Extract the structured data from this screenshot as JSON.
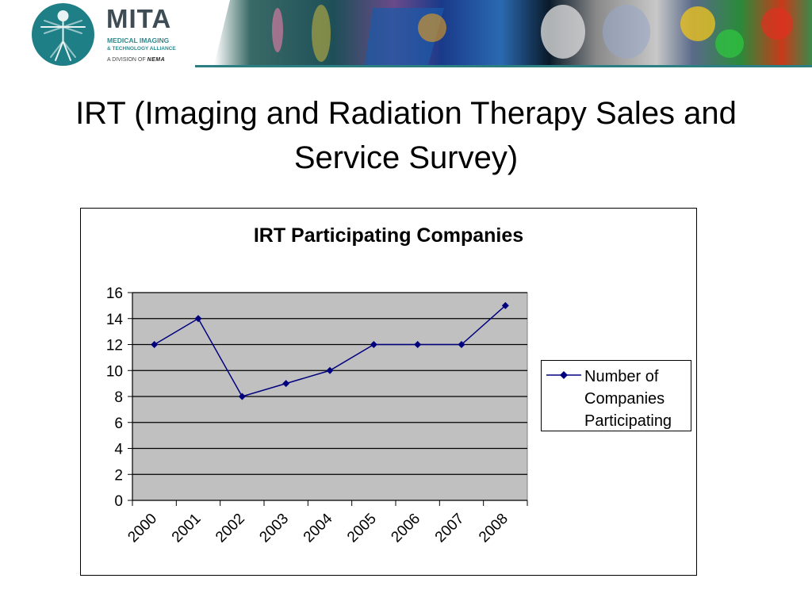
{
  "header": {
    "brand_name": "MITA",
    "brand_line1": "MEDICAL IMAGING",
    "brand_line2": "& TECHNOLOGY ALLIANCE",
    "division_prefix": "A DIVISION OF",
    "division_name": "NEMA"
  },
  "slide": {
    "title": "IRT (Imaging and Radiation Therapy Sales and Service Survey)"
  },
  "chart_data": {
    "type": "line",
    "title": "IRT Participating Companies",
    "categories": [
      "2000",
      "2001",
      "2002",
      "2003",
      "2004",
      "2005",
      "2006",
      "2007",
      "2008"
    ],
    "series": [
      {
        "name": "Number of Companies Participating",
        "values": [
          12,
          14,
          8,
          9,
          10,
          12,
          12,
          12,
          15
        ],
        "color": "#00007f"
      }
    ],
    "yticks": [
      "0",
      "2",
      "4",
      "6",
      "8",
      "10",
      "12",
      "14",
      "16"
    ],
    "ylim": [
      0,
      16
    ],
    "grid": true,
    "plot_background": "#c0c0c0",
    "legend_position": "right"
  }
}
